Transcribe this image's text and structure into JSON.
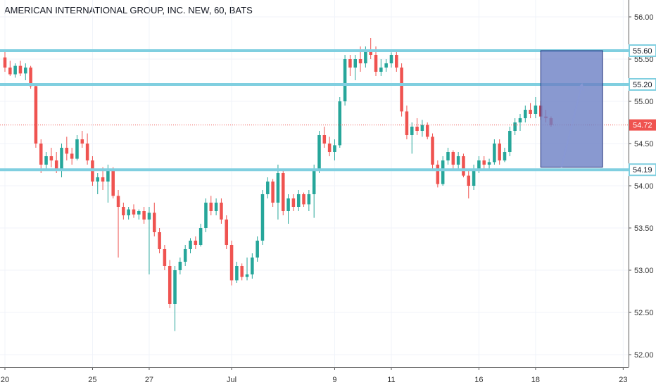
{
  "title": "AMERICAN INTERNATIONAL GROUP, INC. NEW, 60, BATS",
  "colors": {
    "up": "#26a69a",
    "down": "#ef5350",
    "level": "#80cfe0",
    "price_line": "#ef5350",
    "zone_fill": "#6b7fc4",
    "zone_border": "#1f2f7a",
    "arrow": "#8898d4"
  },
  "chart_data": {
    "type": "candlestick",
    "title": "AMERICAN INTERNATIONAL GROUP, INC. NEW, 60, BATS",
    "ylim": [
      51.85,
      56.2
    ],
    "y_ticks": [
      "52.00",
      "52.50",
      "53.00",
      "53.50",
      "54.00",
      "54.50",
      "55.00",
      "55.50",
      "56.00"
    ],
    "x_ticks": [
      {
        "label": "20",
        "i": 0
      },
      {
        "label": "25",
        "i": 17
      },
      {
        "label": "27",
        "i": 28
      },
      {
        "label": "Jul",
        "i": 44
      },
      {
        "label": "9",
        "i": 64
      },
      {
        "label": "11",
        "i": 75
      },
      {
        "label": "16",
        "i": 92
      },
      {
        "label": "18",
        "i": 103
      },
      {
        "label": "23",
        "i": 120
      }
    ],
    "x_total": 122,
    "candles": [
      [
        55.52,
        55.6,
        55.35,
        55.4
      ],
      [
        55.4,
        55.48,
        55.3,
        55.32
      ],
      [
        55.32,
        55.45,
        55.28,
        55.42
      ],
      [
        55.42,
        55.48,
        55.3,
        55.33
      ],
      [
        55.33,
        55.45,
        55.25,
        55.4
      ],
      [
        55.4,
        55.42,
        55.15,
        55.18
      ],
      [
        55.18,
        55.2,
        54.45,
        54.5
      ],
      [
        54.5,
        54.55,
        54.15,
        54.25
      ],
      [
        54.25,
        54.4,
        54.2,
        54.35
      ],
      [
        54.35,
        54.45,
        54.22,
        54.3
      ],
      [
        54.3,
        54.4,
        54.15,
        54.2
      ],
      [
        54.2,
        54.5,
        54.1,
        54.45
      ],
      [
        54.45,
        54.58,
        54.3,
        54.38
      ],
      [
        54.38,
        54.45,
        54.25,
        54.32
      ],
      [
        54.32,
        54.6,
        54.3,
        54.55
      ],
      [
        54.55,
        54.65,
        54.45,
        54.5
      ],
      [
        54.5,
        54.62,
        54.25,
        54.3
      ],
      [
        54.3,
        54.35,
        54.0,
        54.05
      ],
      [
        54.05,
        54.15,
        53.9,
        54.1
      ],
      [
        54.1,
        54.22,
        53.95,
        54.05
      ],
      [
        54.05,
        54.25,
        53.8,
        54.2
      ],
      [
        54.2,
        54.22,
        53.85,
        53.88
      ],
      [
        53.88,
        53.95,
        53.15,
        53.75
      ],
      [
        53.75,
        53.8,
        53.6,
        53.65
      ],
      [
        53.65,
        53.75,
        53.6,
        53.72
      ],
      [
        53.72,
        53.78,
        53.62,
        53.66
      ],
      [
        53.66,
        53.72,
        53.6,
        53.7
      ],
      [
        53.7,
        53.75,
        53.55,
        53.6
      ],
      [
        53.6,
        53.75,
        52.95,
        53.68
      ],
      [
        53.68,
        53.8,
        53.4,
        53.45
      ],
      [
        53.45,
        53.5,
        53.2,
        53.25
      ],
      [
        53.25,
        53.3,
        53.0,
        53.05
      ],
      [
        53.05,
        53.12,
        52.55,
        52.6
      ],
      [
        52.6,
        53.05,
        52.28,
        53.0
      ],
      [
        53.0,
        53.15,
        52.95,
        53.1
      ],
      [
        53.1,
        53.3,
        53.05,
        53.25
      ],
      [
        53.25,
        53.38,
        53.2,
        53.35
      ],
      [
        53.35,
        53.4,
        53.25,
        53.3
      ],
      [
        53.3,
        53.55,
        53.28,
        53.5
      ],
      [
        53.5,
        53.85,
        53.45,
        53.8
      ],
      [
        53.8,
        53.88,
        53.65,
        53.7
      ],
      [
        53.7,
        53.85,
        53.65,
        53.8
      ],
      [
        53.8,
        53.85,
        53.55,
        53.6
      ],
      [
        53.6,
        53.65,
        53.25,
        53.3
      ],
      [
        53.3,
        53.35,
        52.82,
        52.88
      ],
      [
        52.88,
        53.1,
        52.85,
        53.05
      ],
      [
        53.05,
        53.08,
        52.88,
        52.92
      ],
      [
        52.92,
        53.15,
        52.88,
        52.95
      ],
      [
        52.95,
        53.2,
        52.9,
        53.15
      ],
      [
        53.15,
        53.4,
        53.1,
        53.35
      ],
      [
        53.35,
        53.95,
        53.3,
        53.9
      ],
      [
        53.9,
        54.1,
        53.85,
        54.05
      ],
      [
        54.05,
        54.08,
        53.75,
        53.8
      ],
      [
        53.8,
        54.25,
        53.6,
        54.15
      ],
      [
        54.15,
        54.2,
        53.65,
        53.7
      ],
      [
        53.7,
        53.9,
        53.55,
        53.85
      ],
      [
        53.85,
        53.9,
        53.7,
        53.75
      ],
      [
        53.75,
        53.95,
        53.7,
        53.9
      ],
      [
        53.9,
        53.92,
        53.75,
        53.78
      ],
      [
        53.78,
        53.95,
        53.7,
        53.9
      ],
      [
        53.9,
        54.25,
        53.62,
        54.2
      ],
      [
        54.2,
        54.65,
        54.15,
        54.6
      ],
      [
        54.6,
        54.7,
        54.45,
        54.5
      ],
      [
        54.5,
        54.58,
        54.35,
        54.4
      ],
      [
        54.4,
        54.55,
        54.3,
        54.48
      ],
      [
        54.48,
        55.05,
        54.45,
        55.0
      ],
      [
        55.0,
        55.55,
        54.95,
        55.5
      ],
      [
        55.5,
        55.55,
        55.3,
        55.4
      ],
      [
        55.4,
        55.55,
        55.25,
        55.5
      ],
      [
        55.5,
        55.65,
        55.35,
        55.45
      ],
      [
        55.45,
        55.65,
        55.4,
        55.6
      ],
      [
        55.6,
        55.75,
        55.5,
        55.55
      ],
      [
        55.55,
        55.65,
        55.3,
        55.35
      ],
      [
        55.35,
        55.5,
        55.3,
        55.4
      ],
      [
        55.4,
        55.5,
        55.35,
        55.45
      ],
      [
        55.45,
        55.58,
        55.4,
        55.55
      ],
      [
        55.55,
        55.6,
        55.35,
        55.4
      ],
      [
        55.4,
        55.45,
        54.82,
        54.88
      ],
      [
        54.88,
        54.95,
        54.55,
        54.6
      ],
      [
        54.6,
        54.75,
        54.38,
        54.7
      ],
      [
        54.7,
        54.8,
        54.6,
        54.65
      ],
      [
        54.65,
        54.78,
        54.58,
        54.72
      ],
      [
        54.72,
        54.75,
        54.55,
        54.58
      ],
      [
        54.58,
        54.62,
        54.2,
        54.25
      ],
      [
        54.25,
        54.3,
        53.98,
        54.02
      ],
      [
        54.02,
        54.35,
        54.0,
        54.3
      ],
      [
        54.3,
        54.45,
        54.25,
        54.4
      ],
      [
        54.4,
        54.42,
        54.2,
        54.25
      ],
      [
        54.25,
        54.4,
        54.18,
        54.35
      ],
      [
        54.35,
        54.38,
        54.1,
        54.12
      ],
      [
        54.12,
        54.2,
        53.85,
        54.0
      ],
      [
        54.0,
        54.25,
        53.95,
        54.2
      ],
      [
        54.2,
        54.35,
        54.15,
        54.3
      ],
      [
        54.3,
        54.35,
        54.2,
        54.25
      ],
      [
        54.25,
        54.32,
        54.2,
        54.28
      ],
      [
        54.28,
        54.55,
        54.25,
        54.5
      ],
      [
        54.5,
        54.55,
        54.25,
        54.3
      ],
      [
        54.3,
        54.45,
        54.28,
        54.4
      ],
      [
        54.4,
        54.7,
        54.35,
        54.65
      ],
      [
        54.65,
        54.8,
        54.6,
        54.75
      ],
      [
        54.75,
        54.85,
        54.65,
        54.8
      ],
      [
        54.8,
        54.95,
        54.75,
        54.9
      ],
      [
        54.9,
        54.98,
        54.8,
        54.85
      ],
      [
        54.85,
        55.05,
        54.8,
        54.95
      ],
      [
        54.95,
        55.0,
        54.78,
        54.82
      ],
      [
        54.82,
        54.9,
        54.75,
        54.8
      ],
      [
        54.8,
        54.82,
        54.7,
        54.72
      ]
    ],
    "levels": [
      {
        "price": 55.6,
        "label": "55.60"
      },
      {
        "price": 55.2,
        "label": "55.20"
      },
      {
        "price": 54.19,
        "label": "54.19"
      }
    ],
    "last_price": {
      "price": 54.72,
      "label": "54.72"
    },
    "zone": {
      "i_start": 104,
      "i_end": 116,
      "top": 55.6,
      "bottom": 54.22
    },
    "arrow": {
      "i_start": 108,
      "p_start": 54.22,
      "i_end": 112,
      "p_end": 55.2
    }
  }
}
